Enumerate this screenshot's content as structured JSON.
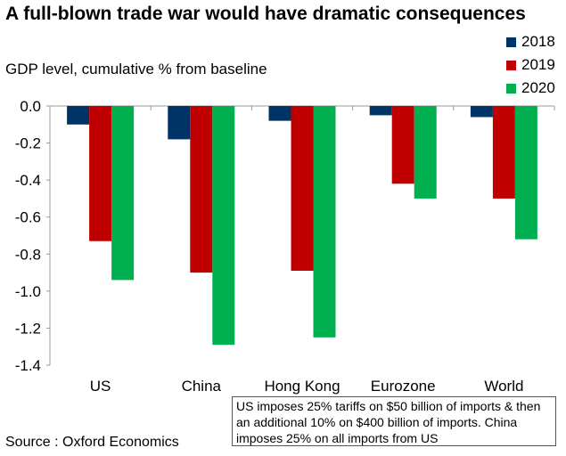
{
  "chart_data": {
    "type": "bar",
    "title": "A full-blown trade war would have dramatic consequences",
    "ylabel": "GDP level, cumulative % from baseline",
    "categories": [
      "US",
      "China",
      "Hong Kong",
      "Eurozone",
      "World"
    ],
    "series": [
      {
        "name": "2018",
        "color": "#003366",
        "values": [
          -0.1,
          -0.18,
          -0.08,
          -0.05,
          -0.06
        ]
      },
      {
        "name": "2019",
        "color": "#C00000",
        "values": [
          -0.73,
          -0.9,
          -0.89,
          -0.42,
          -0.5
        ]
      },
      {
        "name": "2020",
        "color": "#00B050",
        "values": [
          -0.94,
          -1.29,
          -1.25,
          -0.5,
          -0.72
        ]
      }
    ],
    "ylim": [
      -1.4,
      0.0
    ],
    "yticks": [
      "0.0",
      "-0.2",
      "-0.4",
      "-0.6",
      "-0.8",
      "-1.0",
      "-1.2",
      "-1.4"
    ],
    "grid": false,
    "legend_placement": "top-right",
    "annotation": "US imposes 25% tariffs on $50 billion of imports & then an additional 10% on $400 billion of imports. China imposes 25% on all imports from US",
    "source": "Source : Oxford Economics"
  }
}
